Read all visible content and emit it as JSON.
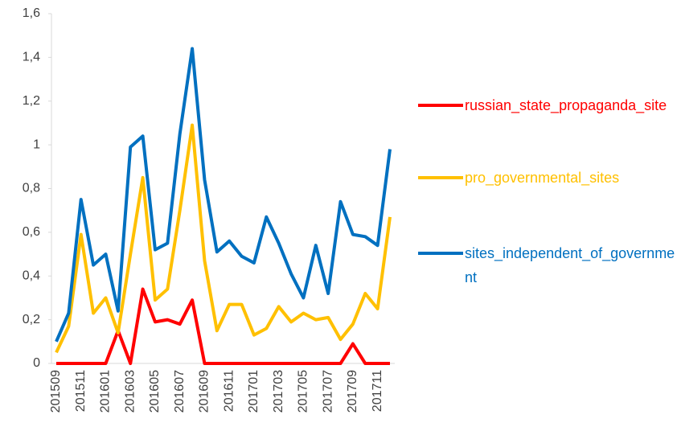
{
  "chart_data": {
    "type": "line",
    "categories": [
      "201509",
      null,
      "201511",
      null,
      "201601",
      null,
      "201603",
      null,
      "201605",
      null,
      "201607",
      null,
      "201609",
      null,
      "201611",
      null,
      "201701",
      null,
      "201703",
      null,
      "201705",
      null,
      "201707",
      null,
      "201709",
      null,
      "201711",
      null
    ],
    "series": [
      {
        "name": "russian_state_propaganda_site",
        "color": "#ff0000",
        "values": [
          0,
          0,
          0,
          0,
          0,
          0.15,
          0,
          0.34,
          0.19,
          0.2,
          0.18,
          0.29,
          0,
          0,
          0,
          0,
          0,
          0,
          0,
          0,
          0,
          0,
          0,
          0,
          0.09,
          0,
          0,
          0
        ]
      },
      {
        "name": "pro_governmental_sites",
        "color": "#ffc000",
        "values": [
          0.05,
          0.17,
          0.59,
          0.23,
          0.3,
          0.14,
          0.5,
          0.85,
          0.29,
          0.34,
          0.7,
          1.09,
          0.47,
          0.15,
          0.27,
          0.27,
          0.13,
          0.16,
          0.26,
          0.19,
          0.23,
          0.2,
          0.21,
          0.11,
          0.18,
          0.32,
          0.25,
          0.67
        ]
      },
      {
        "name": "sites_independent_of_government",
        "color": "#0070c0",
        "values": [
          0.1,
          0.23,
          0.75,
          0.45,
          0.5,
          0.24,
          0.99,
          1.04,
          0.52,
          0.55,
          1.05,
          1.44,
          0.84,
          0.51,
          0.56,
          0.49,
          0.46,
          0.67,
          0.55,
          0.41,
          0.3,
          0.54,
          0.32,
          0.74,
          0.59,
          0.58,
          0.54,
          0.98
        ]
      }
    ],
    "ylim": [
      0,
      1.6
    ],
    "yticks": [
      0,
      {
        "value": 0.2,
        "label": "0,2"
      },
      {
        "value": 0.4,
        "label": "0,4"
      },
      {
        "value": 0.6,
        "label": "0,6"
      },
      {
        "value": 0.8,
        "label": "0,8"
      },
      1,
      {
        "value": 1.2,
        "label": "1,2"
      },
      {
        "value": 1.4,
        "label": "1,4"
      },
      {
        "value": 1.6,
        "label": "1,6"
      }
    ],
    "grid": false,
    "legend": "right"
  }
}
